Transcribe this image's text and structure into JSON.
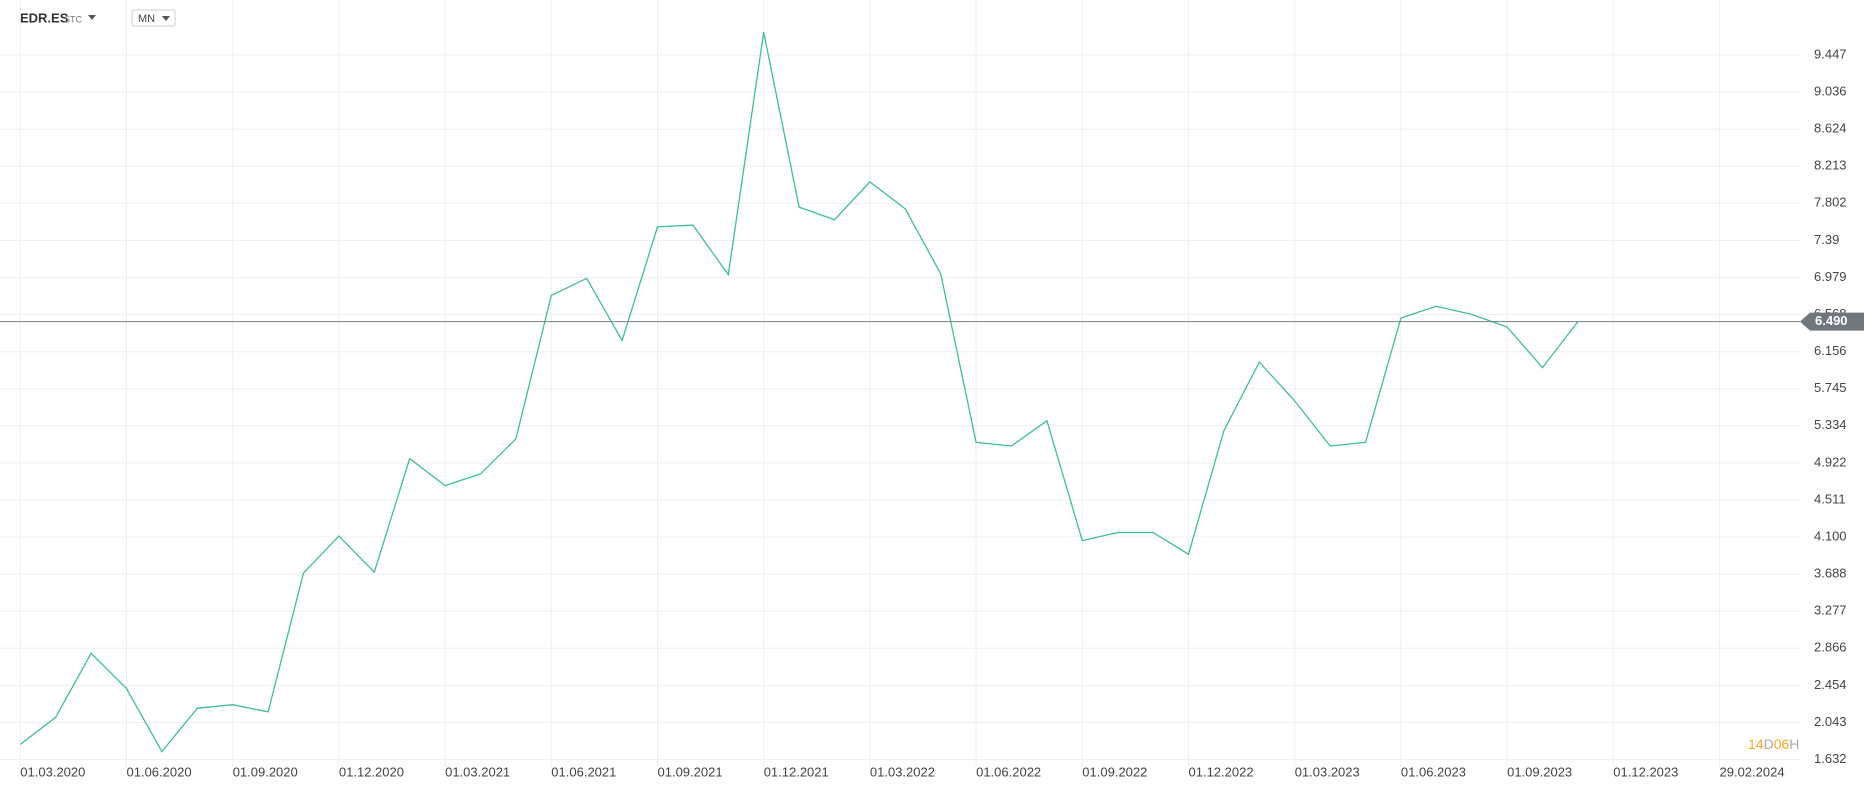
{
  "chart_data": {
    "type": "line",
    "symbol": "EDR.ES",
    "exchange": "STC",
    "interval": "MN",
    "categories": [
      "01.03.2020",
      null,
      null,
      "01.06.2020",
      null,
      null,
      "01.09.2020",
      null,
      null,
      "01.12.2020",
      null,
      null,
      "01.03.2021",
      null,
      null,
      "01.06.2021",
      null,
      null,
      "01.09.2021",
      null,
      null,
      "01.12.2021",
      null,
      null,
      "01.03.2022",
      null,
      null,
      "01.06.2022",
      null,
      null,
      "01.09.2022",
      null,
      null,
      "01.12.2022",
      null,
      null,
      "01.03.2023",
      null,
      null,
      "01.06.2023",
      null,
      null,
      "01.09.2023",
      null,
      null,
      "01.12.2023",
      null,
      null,
      "29.02.2024"
    ],
    "values": [
      1.8,
      2.1,
      2.81,
      2.42,
      1.72,
      2.2,
      2.24,
      2.16,
      3.7,
      4.11,
      3.71,
      4.97,
      4.67,
      4.8,
      5.19,
      6.78,
      6.97,
      6.28,
      7.54,
      7.56,
      7.01,
      9.7,
      7.76,
      7.62,
      8.04,
      7.74,
      7.02,
      5.15,
      5.11,
      5.39,
      4.06,
      4.15,
      4.15,
      3.91,
      5.28,
      6.04,
      5.61,
      5.11,
      5.15,
      6.53,
      6.66,
      6.57,
      6.43,
      5.98,
      6.49,
      null,
      null,
      null,
      null
    ],
    "color": "#3dbf98",
    "last_price": {
      "value": 6.49,
      "label": "6.490"
    },
    "countdown": [
      "14",
      "D",
      "06",
      "H"
    ],
    "ylim": [
      1.55,
      9.8
    ],
    "yticks": [
      1.632,
      2.043,
      2.454,
      2.866,
      3.277,
      3.688,
      {
        "value": 4.1,
        "label": "4.100"
      },
      4.511,
      4.922,
      5.334,
      5.745,
      6.156,
      6.568,
      6.979,
      7.39,
      7.802,
      8.213,
      8.624,
      9.036,
      9.447
    ],
    "grid": true
  }
}
